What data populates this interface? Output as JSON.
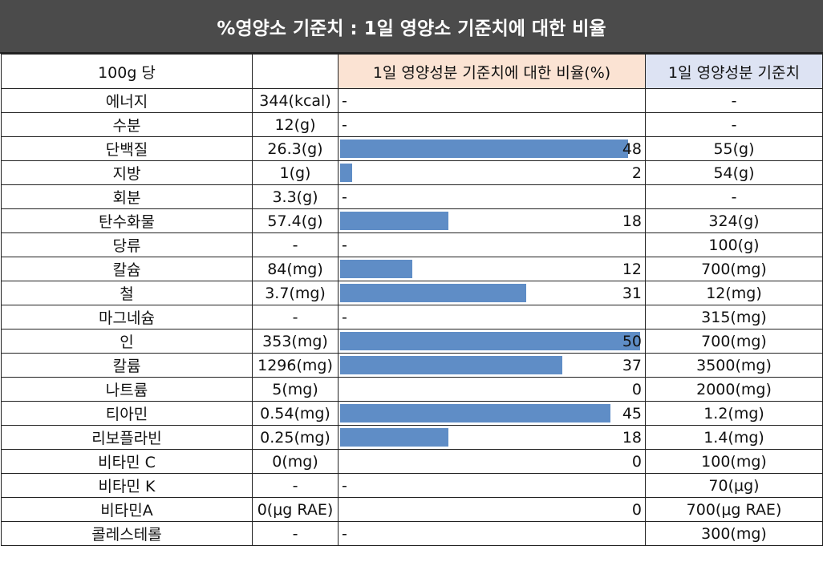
{
  "title": "%영양소 기준치 : 1일 영양소 기준치에 대한 비율",
  "headers": {
    "name": "100g 당",
    "amount": "",
    "percent": "1일 영양성분 기준치에 대한 비율(%)",
    "reference": "1일 영양성분 기준치"
  },
  "colors": {
    "title_bg": "#4b4b4b",
    "bar": "#5f8dc6",
    "percent_header_bg": "#fbe3d3",
    "reference_header_bg": "#dde3f3"
  },
  "rows": [
    {
      "name": "에너지",
      "amount": "344(kcal)",
      "pct": "-",
      "ref": "-"
    },
    {
      "name": "수분",
      "amount": "12(g)",
      "pct": "-",
      "ref": "-"
    },
    {
      "name": "단백질",
      "amount": "26.3(g)",
      "pct": "48",
      "ref": "55(g)"
    },
    {
      "name": "지방",
      "amount": "1(g)",
      "pct": "2",
      "ref": "54(g)"
    },
    {
      "name": "회분",
      "amount": "3.3(g)",
      "pct": "-",
      "ref": "-"
    },
    {
      "name": "탄수화물",
      "amount": "57.4(g)",
      "pct": "18",
      "ref": "324(g)"
    },
    {
      "name": "당류",
      "amount": "-",
      "pct": "-",
      "ref": "100(g)"
    },
    {
      "name": "칼슘",
      "amount": "84(mg)",
      "pct": "12",
      "ref": "700(mg)"
    },
    {
      "name": "철",
      "amount": "3.7(mg)",
      "pct": "31",
      "ref": "12(mg)"
    },
    {
      "name": "마그네슘",
      "amount": "-",
      "pct": "-",
      "ref": "315(mg)"
    },
    {
      "name": "인",
      "amount": "353(mg)",
      "pct": "50",
      "ref": "700(mg)"
    },
    {
      "name": "칼륨",
      "amount": "1296(mg)",
      "pct": "37",
      "ref": "3500(mg)"
    },
    {
      "name": "나트륨",
      "amount": "5(mg)",
      "pct": "0",
      "ref": "2000(mg)"
    },
    {
      "name": "티아민",
      "amount": "0.54(mg)",
      "pct": "45",
      "ref": "1.2(mg)"
    },
    {
      "name": "리보플라빈",
      "amount": "0.25(mg)",
      "pct": "18",
      "ref": "1.4(mg)"
    },
    {
      "name": "비타민 C",
      "amount": "0(mg)",
      "pct": "0",
      "ref": "100(mg)"
    },
    {
      "name": "비타민 K",
      "amount": "-",
      "pct": "-",
      "ref": "70(μg)"
    },
    {
      "name": "비타민A",
      "amount": "0(μg RAE)",
      "pct": "0",
      "ref": "700(μg RAE)"
    },
    {
      "name": "콜레스테롤",
      "amount": "-",
      "pct": "-",
      "ref": "300(mg)"
    }
  ]
}
